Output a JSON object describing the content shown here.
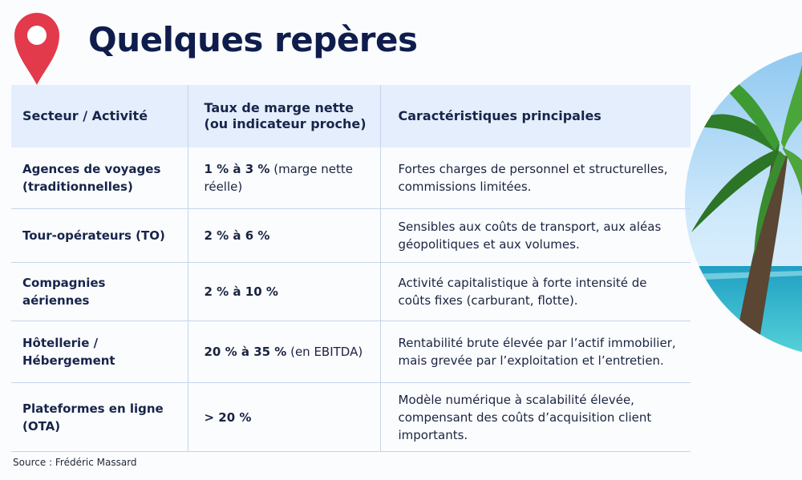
{
  "title": "Quelques repères",
  "source": "Source : Frédéric Massard",
  "icons": {
    "pin": "map-pin-icon",
    "image": "palm-tree-beach-image"
  },
  "colors": {
    "title": "#0f1d4d",
    "pin": "#e23a4a",
    "header_bg": "#e4eefc"
  },
  "table": {
    "headers": [
      "Secteur / Activité",
      "Taux de marge nette (ou indicateur proche)",
      "Caractéristiques principales"
    ],
    "rows": [
      {
        "sector": "Agences de voyages (traditionnelles)",
        "rate": "1 % à 3 %",
        "rate_note": " (marge nette réelle)",
        "features": "Fortes charges de personnel et structurelles, commissions limitées."
      },
      {
        "sector": "Tour-opérateurs (TO)",
        "rate": "2 % à 6 %",
        "rate_note": "",
        "features": "Sensibles aux coûts de transport, aux aléas géopolitiques et aux volumes."
      },
      {
        "sector": "Compagnies aériennes",
        "rate": "2 % à 10 %",
        "rate_note": "",
        "features": "Activité capitalistique à forte intensité de coûts fixes (carburant, flotte)."
      },
      {
        "sector": "Hôtellerie / Hébergement",
        "rate": "20 % à 35 %",
        "rate_note": " (en EBITDA)",
        "features": "Rentabilité brute élevée par l’actif immobilier, mais grevée par l’exploitation et l’entretien."
      },
      {
        "sector": "Plateformes en ligne (OTA)",
        "rate": "> 20 %",
        "rate_note": "",
        "features": "Modèle numérique à scalabilité élevée, compensant des coûts d’acquisition client importants."
      }
    ]
  }
}
